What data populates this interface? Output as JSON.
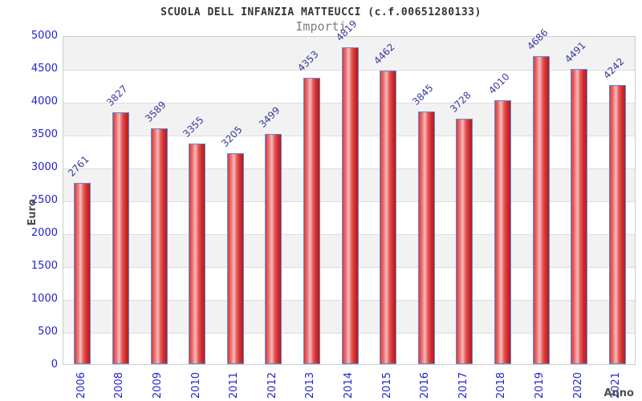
{
  "header": {
    "title": "SCUOLA DELL INFANZIA MATTEUCCI (c.f.00651280133)",
    "subtitle": "Importi"
  },
  "chart_data": {
    "type": "bar",
    "title": "SCUOLA DELL INFANZIA MATTEUCCI (c.f.00651280133)",
    "subtitle": "Importi",
    "xlabel": "Anno",
    "ylabel": "Euro",
    "categories": [
      "2006",
      "2008",
      "2009",
      "2010",
      "2011",
      "2012",
      "2013",
      "2014",
      "2015",
      "2016",
      "2017",
      "2018",
      "2019",
      "2020",
      "2021"
    ],
    "values": [
      2761,
      3827,
      3589,
      3355,
      3205,
      3499,
      4353,
      4819,
      4462,
      3845,
      3728,
      4010,
      4686,
      4491,
      4242
    ],
    "ylim": [
      0,
      5000
    ],
    "y_ticks": [
      0,
      500,
      1000,
      1500,
      2000,
      2500,
      3000,
      3500,
      4000,
      4500,
      5000
    ],
    "grid": "horizontal-bands",
    "legend_position": "none",
    "colors": {
      "bar_fill_edge": "#d12f2f",
      "bar_fill_center": "#f6bcbc",
      "bar_border": "#5b8dd9",
      "axis_tick_text": "#2323cc",
      "bar_value_text": "#3a3aa0",
      "band_gray": "#f2f2f2",
      "band_white": "#ffffff",
      "plot_border": "#cccccc",
      "title_text": "#333333",
      "subtitle_text": "#7d7d7d",
      "axis_label_text": "#4d4d4d"
    }
  }
}
